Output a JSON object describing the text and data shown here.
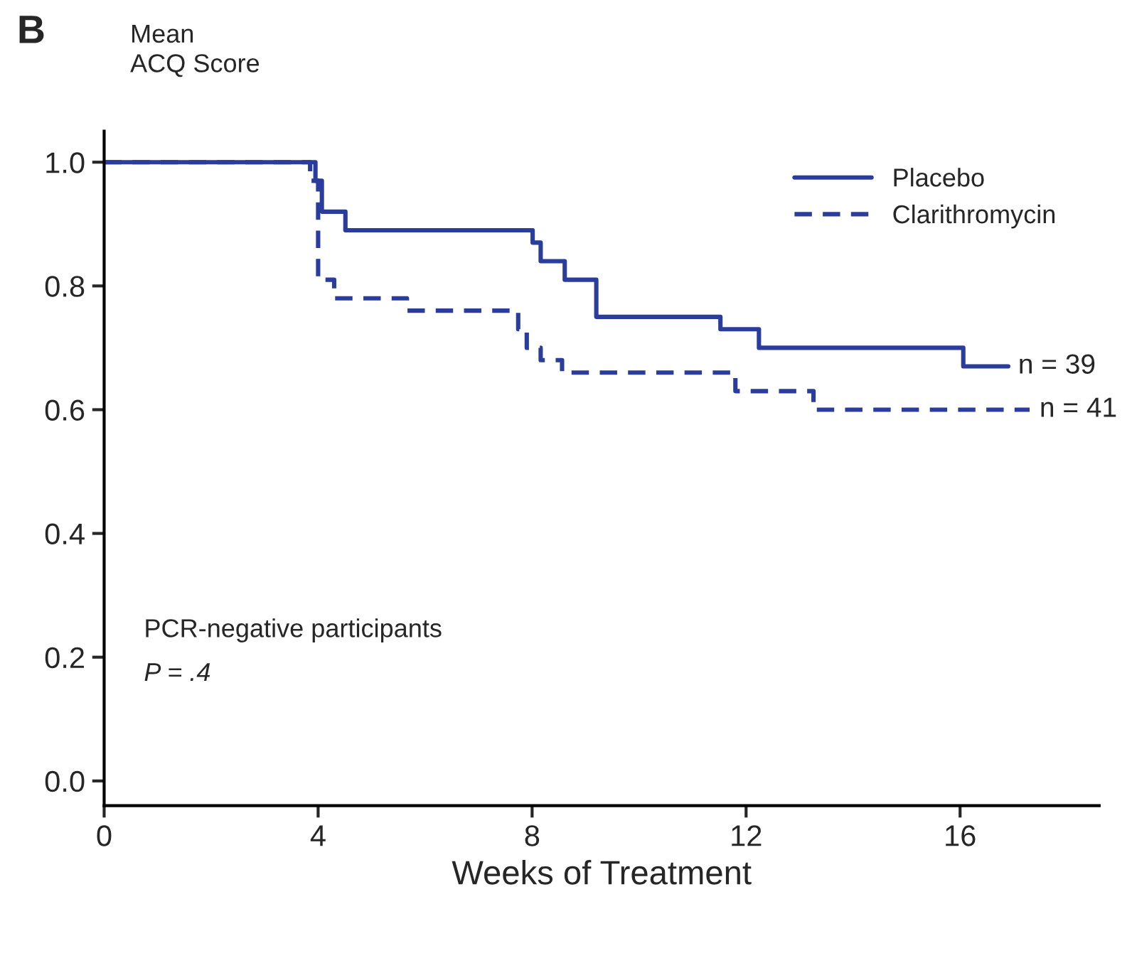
{
  "chart_data": {
    "type": "step",
    "title": "B",
    "ylabel": "Mean\nACQ Score",
    "xlabel": "Weeks of Treatment",
    "xlim": [
      0,
      18.6
    ],
    "xticks": [
      0,
      4,
      8,
      12,
      16
    ],
    "ylim": [
      -0.04,
      1.05
    ],
    "yticks": [
      {
        "value": 0,
        "label": "0.0"
      },
      0.2,
      0.4,
      0.6,
      0.8,
      {
        "value": 1,
        "label": "1.0"
      }
    ],
    "grid": false,
    "legend": "top right",
    "series": [
      {
        "name": "Placebo",
        "color": "#2b3d9c",
        "line_style": "solid",
        "x": [
          0,
          3.95,
          4.07,
          4.51,
          8.01,
          8.16,
          8.61,
          9.2,
          11.52,
          12.24,
          16.06,
          16.9
        ],
        "values": [
          1.0,
          0.97,
          0.92,
          0.89,
          0.87,
          0.84,
          0.81,
          0.75,
          0.73,
          0.7,
          0.67,
          0.67
        ]
      },
      {
        "name": "Clarithromycin",
        "color": "#2b3d9c",
        "line_style": "dashed",
        "x": [
          0,
          3.85,
          4.0,
          4.3,
          5.66,
          7.74,
          7.9,
          8.16,
          8.56,
          11.8,
          13.26,
          17.3
        ],
        "values": [
          1.0,
          0.97,
          0.81,
          0.78,
          0.76,
          0.73,
          0.7,
          0.68,
          0.66,
          0.63,
          0.6,
          0.6
        ]
      }
    ],
    "annotations": [
      {
        "text": "n = 39",
        "x": 16.9,
        "y": 0.67
      },
      {
        "text": "n = 41",
        "x": 17.3,
        "y": 0.6
      },
      "PCR-negative participants",
      "P = .4"
    ]
  }
}
